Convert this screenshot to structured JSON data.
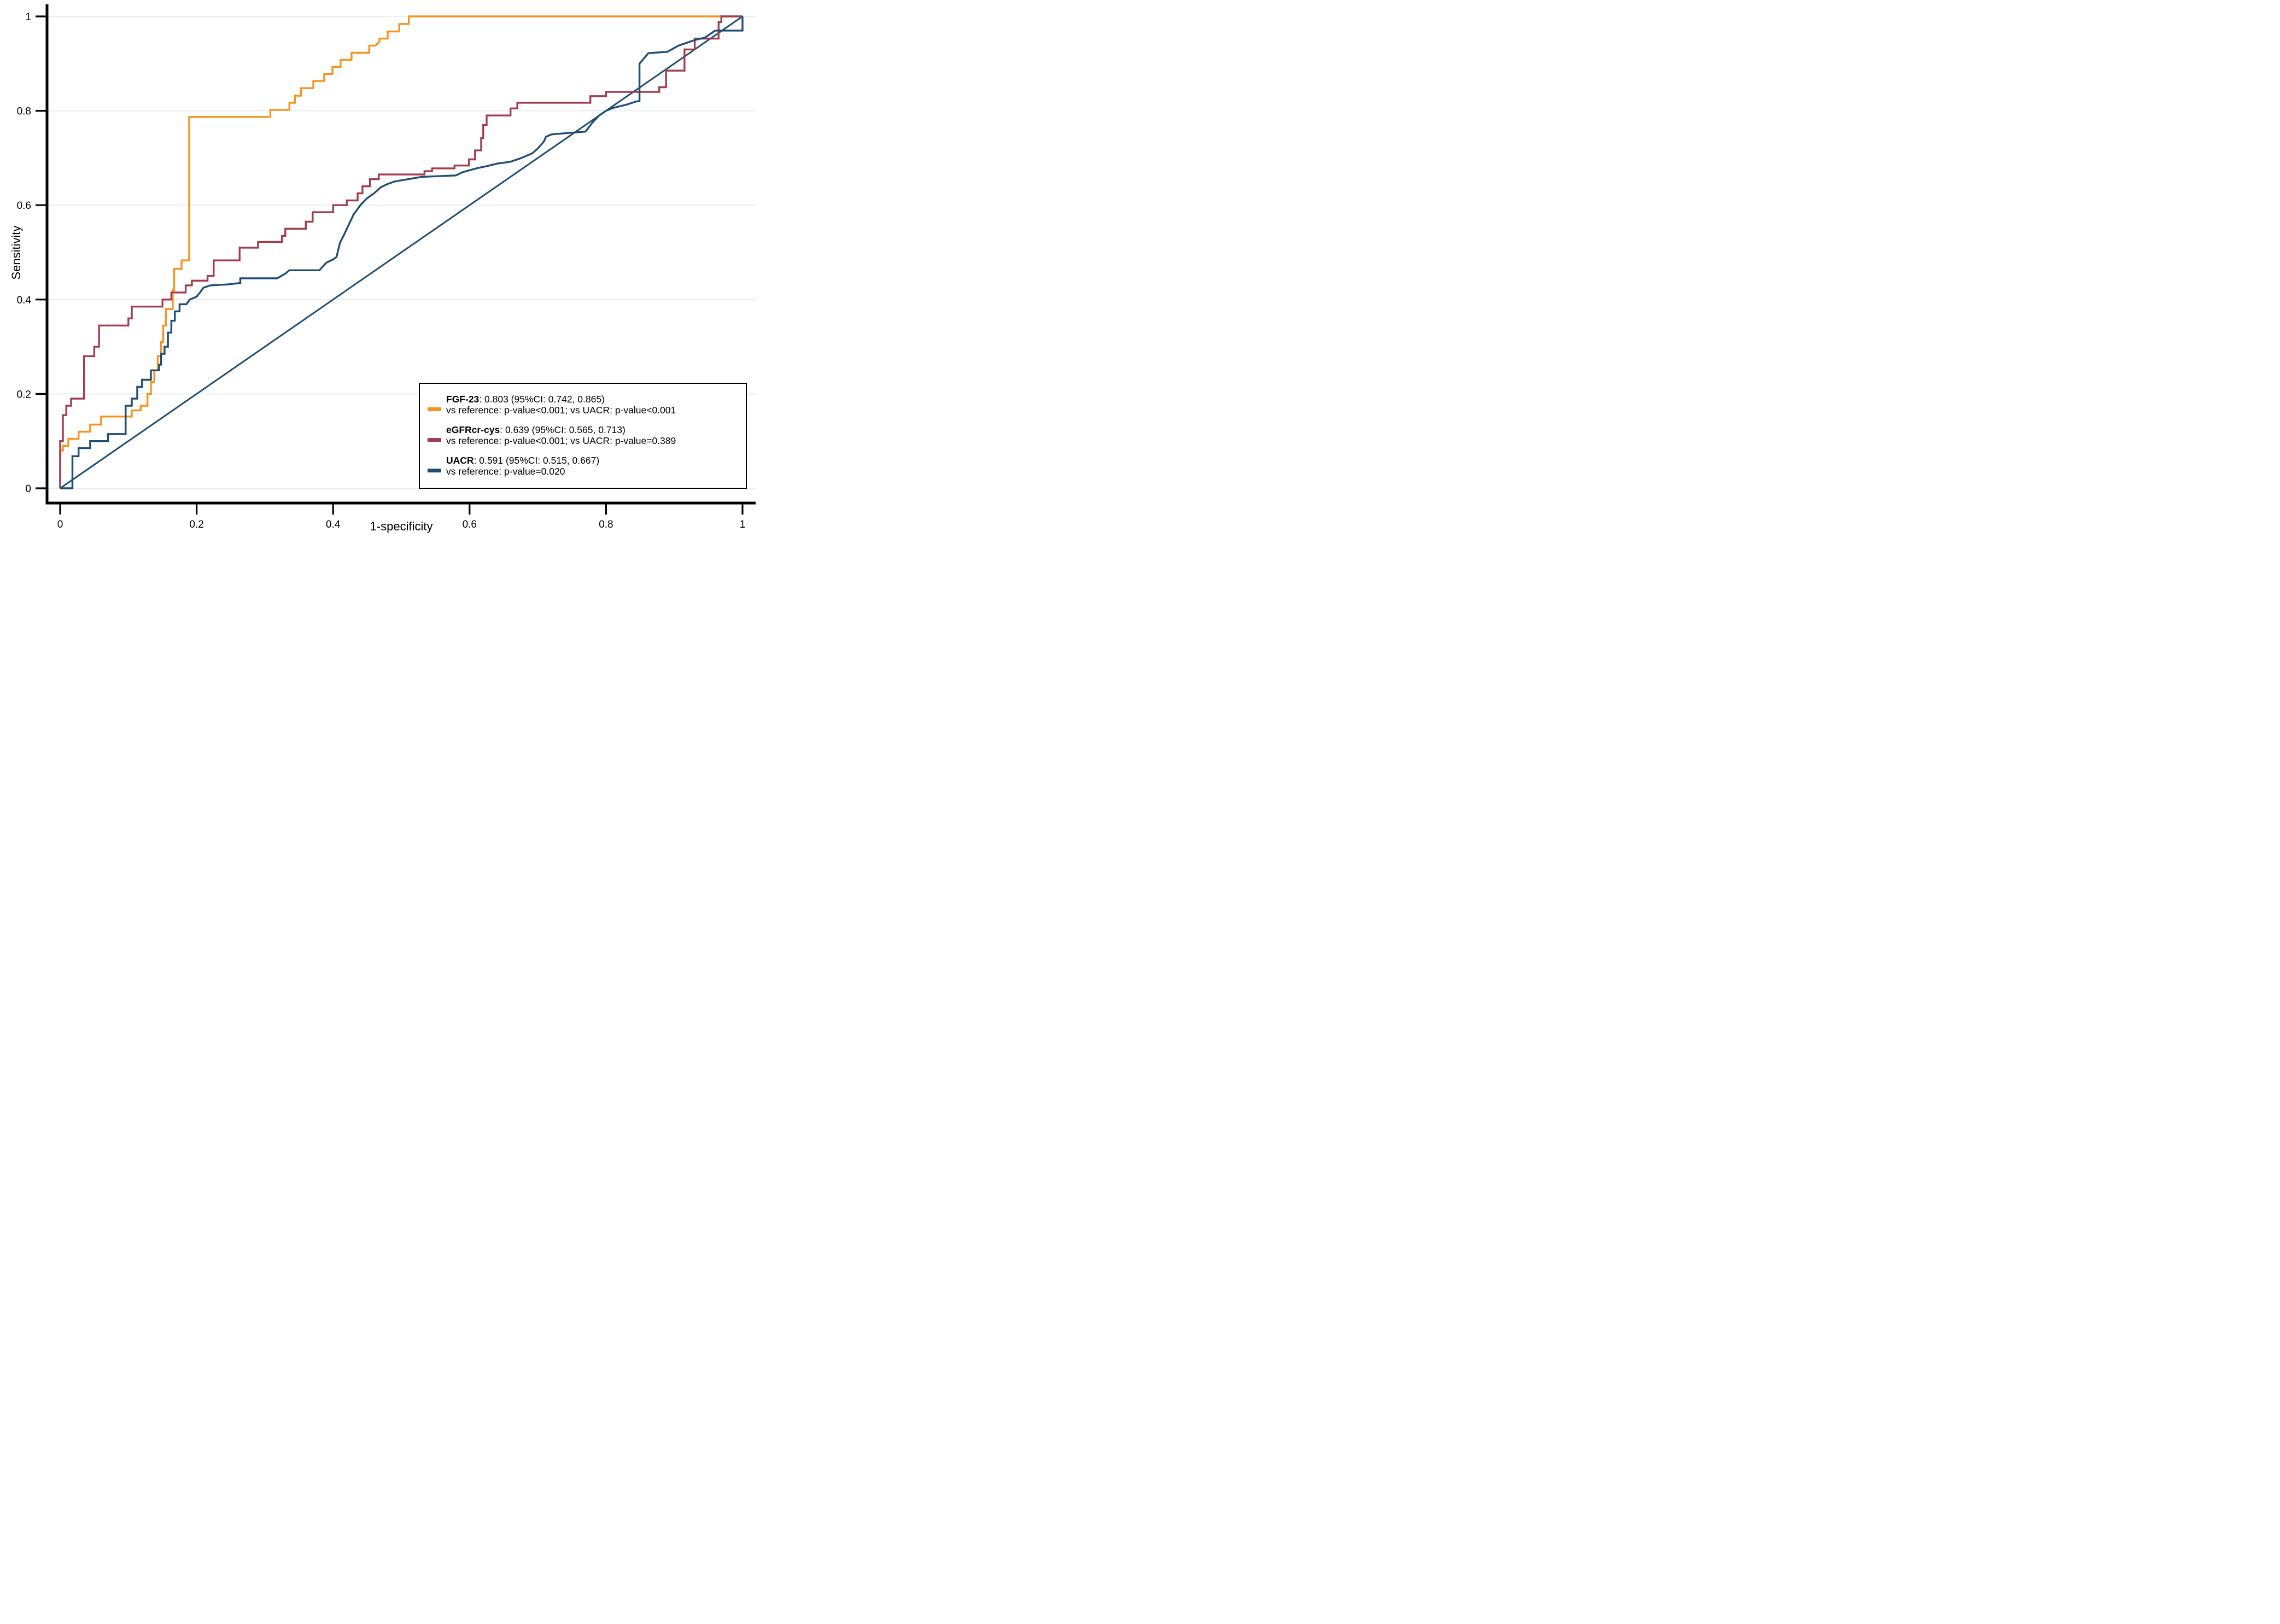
{
  "figure": {
    "background": "#ffffff",
    "grid_color": "#e7eff3",
    "axis_color": "#000000"
  },
  "axes": {
    "x_label": "1-specificity",
    "y_label": "Sensitivity",
    "x_ticks": [
      "0",
      "0.2",
      "0.4",
      "0.6",
      "0.8",
      "1"
    ],
    "y_ticks": [
      "0",
      "0.2",
      "0.4",
      "0.6",
      "0.8",
      "1"
    ],
    "x_range": [
      0,
      1
    ],
    "y_range": [
      0,
      1
    ]
  },
  "legend": {
    "entries": [
      {
        "name": "FGF-23",
        "auc_text": ": 0.803 (95%CI: 0.742, 0.865)",
        "compare_text": "vs reference: p-value<0.001; vs UACR: p-value<0.001",
        "color": "#f7931e"
      },
      {
        "name": "eGFRcr-cys",
        "auc_text": ": 0.639 (95%CI: 0.565, 0.713)",
        "compare_text": "vs reference: p-value<0.001; vs UACR: p-value=0.389",
        "color": "#a03e4e"
      },
      {
        "name": "UACR",
        "auc_text": ": 0.591 (95%CI: 0.515, 0.667)",
        "compare_text": "vs reference: p-value=0.020",
        "color": "#1f4e74"
      }
    ]
  },
  "chart_data": {
    "type": "line",
    "subtype": "roc-curves",
    "title": "",
    "xlabel": "1-specificity",
    "ylabel": "Sensitivity",
    "xlim": [
      0,
      1
    ],
    "ylim": [
      0,
      1
    ],
    "grid": "horizontal",
    "legend_position": "lower right",
    "series": [
      {
        "name": "FGF-23",
        "auc": 0.803,
        "ci": [
          0.742,
          0.865
        ],
        "color": "#f7931e",
        "width": 3.4,
        "points": [
          [
            0,
            0
          ],
          [
            0,
            0.08
          ],
          [
            0.004,
            0.08
          ],
          [
            0.004,
            0.09
          ],
          [
            0.012,
            0.09
          ],
          [
            0.012,
            0.105
          ],
          [
            0.027,
            0.105
          ],
          [
            0.027,
            0.12
          ],
          [
            0.044,
            0.12
          ],
          [
            0.044,
            0.135
          ],
          [
            0.06,
            0.135
          ],
          [
            0.06,
            0.152
          ],
          [
            0.105,
            0.152
          ],
          [
            0.105,
            0.165
          ],
          [
            0.118,
            0.165
          ],
          [
            0.118,
            0.175
          ],
          [
            0.128,
            0.175
          ],
          [
            0.128,
            0.2
          ],
          [
            0.133,
            0.2
          ],
          [
            0.133,
            0.225
          ],
          [
            0.138,
            0.225
          ],
          [
            0.138,
            0.25
          ],
          [
            0.143,
            0.25
          ],
          [
            0.143,
            0.28
          ],
          [
            0.148,
            0.28
          ],
          [
            0.148,
            0.31
          ],
          [
            0.151,
            0.31
          ],
          [
            0.151,
            0.345
          ],
          [
            0.155,
            0.345
          ],
          [
            0.155,
            0.38
          ],
          [
            0.165,
            0.38
          ],
          [
            0.165,
            0.42
          ],
          [
            0.167,
            0.42
          ],
          [
            0.167,
            0.465
          ],
          [
            0.178,
            0.465
          ],
          [
            0.178,
            0.483
          ],
          [
            0.189,
            0.483
          ],
          [
            0.189,
            0.787
          ],
          [
            0.308,
            0.787
          ],
          [
            0.308,
            0.802
          ],
          [
            0.336,
            0.802
          ],
          [
            0.336,
            0.817
          ],
          [
            0.344,
            0.817
          ],
          [
            0.344,
            0.832
          ],
          [
            0.353,
            0.832
          ],
          [
            0.353,
            0.848
          ],
          [
            0.371,
            0.848
          ],
          [
            0.371,
            0.863
          ],
          [
            0.387,
            0.863
          ],
          [
            0.387,
            0.878
          ],
          [
            0.399,
            0.878
          ],
          [
            0.399,
            0.893
          ],
          [
            0.411,
            0.893
          ],
          [
            0.411,
            0.908
          ],
          [
            0.427,
            0.908
          ],
          [
            0.427,
            0.923
          ],
          [
            0.453,
            0.923
          ],
          [
            0.453,
            0.938
          ],
          [
            0.462,
            0.938
          ],
          [
            0.468,
            0.947
          ],
          [
            0.468,
            0.953
          ],
          [
            0.48,
            0.953
          ],
          [
            0.48,
            0.968
          ],
          [
            0.497,
            0.968
          ],
          [
            0.497,
            0.984
          ],
          [
            0.511,
            0.984
          ],
          [
            0.511,
            1
          ],
          [
            1,
            1
          ]
        ]
      },
      {
        "name": "eGFRcr-cys",
        "auc": 0.639,
        "ci": [
          0.565,
          0.713
        ],
        "color": "#a03e4e",
        "width": 3.4,
        "points": [
          [
            0,
            0
          ],
          [
            0,
            0.1
          ],
          [
            0.004,
            0.1
          ],
          [
            0.004,
            0.155
          ],
          [
            0.009,
            0.155
          ],
          [
            0.009,
            0.175
          ],
          [
            0.016,
            0.175
          ],
          [
            0.016,
            0.19
          ],
          [
            0.035,
            0.19
          ],
          [
            0.035,
            0.28
          ],
          [
            0.05,
            0.28
          ],
          [
            0.05,
            0.3
          ],
          [
            0.057,
            0.3
          ],
          [
            0.057,
            0.345
          ],
          [
            0.1,
            0.345
          ],
          [
            0.1,
            0.36
          ],
          [
            0.105,
            0.36
          ],
          [
            0.105,
            0.385
          ],
          [
            0.15,
            0.385
          ],
          [
            0.15,
            0.4
          ],
          [
            0.163,
            0.4
          ],
          [
            0.163,
            0.415
          ],
          [
            0.184,
            0.415
          ],
          [
            0.184,
            0.43
          ],
          [
            0.193,
            0.43
          ],
          [
            0.193,
            0.44
          ],
          [
            0.216,
            0.44
          ],
          [
            0.216,
            0.45
          ],
          [
            0.225,
            0.45
          ],
          [
            0.225,
            0.483
          ],
          [
            0.263,
            0.483
          ],
          [
            0.263,
            0.51
          ],
          [
            0.29,
            0.51
          ],
          [
            0.29,
            0.522
          ],
          [
            0.325,
            0.522
          ],
          [
            0.325,
            0.535
          ],
          [
            0.33,
            0.535
          ],
          [
            0.33,
            0.55
          ],
          [
            0.36,
            0.55
          ],
          [
            0.36,
            0.565
          ],
          [
            0.37,
            0.565
          ],
          [
            0.37,
            0.585
          ],
          [
            0.4,
            0.585
          ],
          [
            0.4,
            0.6
          ],
          [
            0.42,
            0.6
          ],
          [
            0.42,
            0.61
          ],
          [
            0.436,
            0.61
          ],
          [
            0.436,
            0.625
          ],
          [
            0.443,
            0.625
          ],
          [
            0.443,
            0.64
          ],
          [
            0.454,
            0.64
          ],
          [
            0.454,
            0.655
          ],
          [
            0.467,
            0.655
          ],
          [
            0.467,
            0.665
          ],
          [
            0.534,
            0.665
          ],
          [
            0.534,
            0.672
          ],
          [
            0.545,
            0.672
          ],
          [
            0.545,
            0.678
          ],
          [
            0.578,
            0.678
          ],
          [
            0.578,
            0.684
          ],
          [
            0.599,
            0.684
          ],
          [
            0.599,
            0.697
          ],
          [
            0.608,
            0.697
          ],
          [
            0.608,
            0.716
          ],
          [
            0.617,
            0.716
          ],
          [
            0.617,
            0.742
          ],
          [
            0.62,
            0.742
          ],
          [
            0.62,
            0.77
          ],
          [
            0.625,
            0.77
          ],
          [
            0.625,
            0.79
          ],
          [
            0.66,
            0.79
          ],
          [
            0.66,
            0.805
          ],
          [
            0.67,
            0.805
          ],
          [
            0.67,
            0.817
          ],
          [
            0.777,
            0.817
          ],
          [
            0.777,
            0.831
          ],
          [
            0.8,
            0.831
          ],
          [
            0.8,
            0.84
          ],
          [
            0.878,
            0.84
          ],
          [
            0.878,
            0.85
          ],
          [
            0.888,
            0.85
          ],
          [
            0.888,
            0.885
          ],
          [
            0.915,
            0.885
          ],
          [
            0.915,
            0.93
          ],
          [
            0.93,
            0.93
          ],
          [
            0.93,
            0.953
          ],
          [
            0.965,
            0.953
          ],
          [
            0.965,
            0.988
          ],
          [
            0.969,
            0.988
          ],
          [
            0.969,
            1
          ],
          [
            1,
            1
          ]
        ]
      },
      {
        "name": "UACR",
        "auc": 0.591,
        "ci": [
          0.515,
          0.667
        ],
        "color": "#1f4e74",
        "width": 3.4,
        "points": [
          [
            0,
            0
          ],
          [
            0.018,
            0
          ],
          [
            0.018,
            0.068
          ],
          [
            0.027,
            0.068
          ],
          [
            0.027,
            0.085
          ],
          [
            0.044,
            0.085
          ],
          [
            0.044,
            0.1
          ],
          [
            0.07,
            0.1
          ],
          [
            0.07,
            0.115
          ],
          [
            0.096,
            0.115
          ],
          [
            0.096,
            0.175
          ],
          [
            0.105,
            0.175
          ],
          [
            0.105,
            0.19
          ],
          [
            0.113,
            0.19
          ],
          [
            0.113,
            0.215
          ],
          [
            0.12,
            0.215
          ],
          [
            0.12,
            0.23
          ],
          [
            0.133,
            0.23
          ],
          [
            0.133,
            0.25
          ],
          [
            0.145,
            0.25
          ],
          [
            0.145,
            0.262
          ],
          [
            0.148,
            0.262
          ],
          [
            0.148,
            0.285
          ],
          [
            0.153,
            0.285
          ],
          [
            0.153,
            0.3
          ],
          [
            0.158,
            0.3
          ],
          [
            0.158,
            0.33
          ],
          [
            0.163,
            0.33
          ],
          [
            0.163,
            0.355
          ],
          [
            0.168,
            0.355
          ],
          [
            0.168,
            0.375
          ],
          [
            0.175,
            0.375
          ],
          [
            0.175,
            0.39
          ],
          [
            0.185,
            0.39
          ],
          [
            0.19,
            0.4
          ],
          [
            0.2,
            0.406
          ],
          [
            0.205,
            0.415
          ],
          [
            0.21,
            0.425
          ],
          [
            0.22,
            0.43
          ],
          [
            0.245,
            0.432
          ],
          [
            0.264,
            0.435
          ],
          [
            0.264,
            0.445
          ],
          [
            0.318,
            0.445
          ],
          [
            0.33,
            0.455
          ],
          [
            0.336,
            0.462
          ],
          [
            0.38,
            0.462
          ],
          [
            0.39,
            0.478
          ],
          [
            0.4,
            0.485
          ],
          [
            0.405,
            0.49
          ],
          [
            0.41,
            0.52
          ],
          [
            0.417,
            0.54
          ],
          [
            0.425,
            0.565
          ],
          [
            0.43,
            0.58
          ],
          [
            0.44,
            0.6
          ],
          [
            0.45,
            0.615
          ],
          [
            0.46,
            0.625
          ],
          [
            0.47,
            0.638
          ],
          [
            0.48,
            0.645
          ],
          [
            0.49,
            0.65
          ],
          [
            0.51,
            0.655
          ],
          [
            0.53,
            0.66
          ],
          [
            0.58,
            0.663
          ],
          [
            0.59,
            0.67
          ],
          [
            0.61,
            0.678
          ],
          [
            0.626,
            0.683
          ],
          [
            0.64,
            0.688
          ],
          [
            0.66,
            0.692
          ],
          [
            0.676,
            0.7
          ],
          [
            0.692,
            0.71
          ],
          [
            0.7,
            0.72
          ],
          [
            0.709,
            0.735
          ],
          [
            0.712,
            0.745
          ],
          [
            0.72,
            0.75
          ],
          [
            0.77,
            0.756
          ],
          [
            0.78,
            0.775
          ],
          [
            0.79,
            0.79
          ],
          [
            0.8,
            0.8
          ],
          [
            0.81,
            0.806
          ],
          [
            0.83,
            0.813
          ],
          [
            0.845,
            0.82
          ],
          [
            0.849,
            0.82
          ],
          [
            0.849,
            0.9
          ],
          [
            0.855,
            0.91
          ],
          [
            0.862,
            0.922
          ],
          [
            0.89,
            0.925
          ],
          [
            0.9,
            0.933
          ],
          [
            0.906,
            0.938
          ],
          [
            0.92,
            0.945
          ],
          [
            0.93,
            0.95
          ],
          [
            0.945,
            0.955
          ],
          [
            0.955,
            0.965
          ],
          [
            0.96,
            0.97
          ],
          [
            1,
            0.97
          ],
          [
            1,
            1
          ]
        ]
      },
      {
        "name": "reference",
        "color": "#1f4e74",
        "width": 3.0,
        "points": [
          [
            0,
            0
          ],
          [
            1,
            1
          ]
        ]
      }
    ],
    "plot_geometry": {
      "x0": 110,
      "x1": 1358,
      "y0": 893,
      "y1": 30,
      "axis_x": 86,
      "axis_y": 920,
      "grid_right": 1382,
      "tick_len": 21
    }
  }
}
